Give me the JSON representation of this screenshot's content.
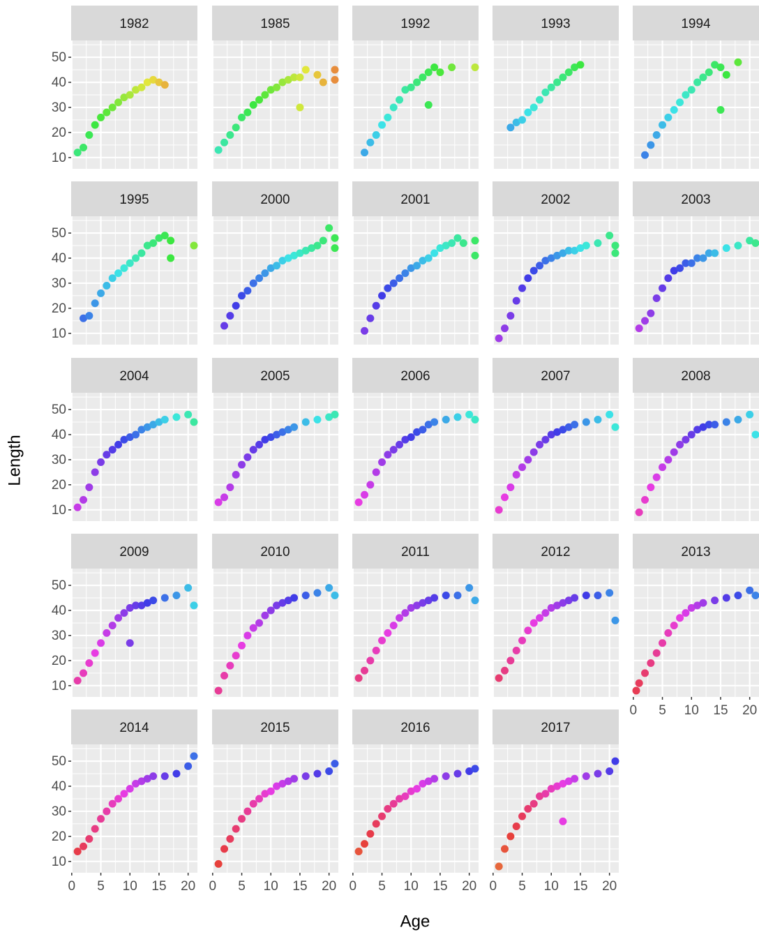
{
  "chart_data": {
    "type": "scatter",
    "x_label": "Age",
    "y_label": "Length",
    "xlim": [
      -0.1,
      21.6
    ],
    "ylim": [
      5.5,
      56.7
    ],
    "xticks": [
      0,
      5,
      10,
      15,
      20
    ],
    "yticks": [
      10,
      20,
      30,
      40,
      50
    ],
    "xminor": [
      2.5,
      7.5,
      12.5,
      17.5
    ],
    "yminor": [
      15,
      25,
      35,
      45,
      55
    ],
    "grid": true,
    "color_scale": {
      "domain": [
        1962,
        2016
      ],
      "hue": [
        15,
        375
      ],
      "saturation": 78,
      "lightness": 57
    },
    "panels": [
      {
        "title": "1982",
        "x": [
          1,
          2,
          3,
          4,
          5,
          6,
          7,
          8,
          9,
          10,
          11,
          12,
          13,
          14,
          15,
          16
        ],
        "y": [
          12,
          14,
          19,
          23,
          26,
          28,
          30,
          32,
          34,
          35,
          37,
          38,
          40,
          41,
          40,
          39
        ]
      },
      {
        "title": "1985",
        "x": [
          1,
          2,
          3,
          4,
          5,
          6,
          7,
          8,
          9,
          10,
          11,
          12,
          13,
          14,
          15,
          16,
          18,
          19,
          21,
          21,
          15
        ],
        "y": [
          13,
          16,
          19,
          22,
          26,
          28,
          31,
          33,
          35,
          37,
          38,
          40,
          41,
          42,
          42,
          45,
          43,
          40,
          45,
          41,
          30
        ]
      },
      {
        "title": "1992",
        "x": [
          2,
          3,
          4,
          5,
          6,
          7,
          8,
          9,
          10,
          11,
          12,
          13,
          14,
          15,
          17,
          21,
          13
        ],
        "y": [
          12,
          16,
          19,
          23,
          26,
          30,
          33,
          37,
          38,
          40,
          42,
          44,
          46,
          44,
          46,
          46,
          31
        ]
      },
      {
        "title": "1993",
        "x": [
          3,
          4,
          5,
          6,
          7,
          8,
          9,
          10,
          11,
          12,
          13,
          14,
          15
        ],
        "y": [
          22,
          24,
          25,
          28,
          30,
          33,
          36,
          38,
          40,
          42,
          44,
          46,
          47
        ]
      },
      {
        "title": "1994",
        "x": [
          2,
          3,
          4,
          5,
          6,
          7,
          8,
          9,
          10,
          11,
          12,
          13,
          14,
          15,
          16,
          18,
          15
        ],
        "y": [
          11,
          15,
          19,
          23,
          26,
          29,
          32,
          35,
          37,
          40,
          42,
          44,
          47,
          46,
          43,
          48,
          29
        ]
      },
      {
        "title": "1995",
        "x": [
          2,
          3,
          4,
          5,
          6,
          7,
          8,
          9,
          10,
          11,
          12,
          13,
          14,
          15,
          16,
          17,
          21,
          17
        ],
        "y": [
          16,
          17,
          22,
          26,
          29,
          32,
          34,
          36,
          38,
          40,
          42,
          45,
          46,
          48,
          49,
          47,
          45,
          40
        ]
      },
      {
        "title": "2000",
        "x": [
          2,
          3,
          4,
          5,
          6,
          7,
          8,
          9,
          10,
          11,
          12,
          13,
          14,
          15,
          16,
          17,
          18,
          19,
          20,
          21,
          21
        ],
        "y": [
          13,
          17,
          21,
          25,
          27,
          30,
          32,
          34,
          36,
          37,
          39,
          40,
          41,
          42,
          43,
          44,
          45,
          47,
          52,
          48,
          44
        ]
      },
      {
        "title": "2001",
        "x": [
          2,
          3,
          4,
          5,
          6,
          7,
          8,
          9,
          10,
          11,
          12,
          13,
          14,
          15,
          16,
          17,
          18,
          19,
          21,
          21
        ],
        "y": [
          11,
          16,
          21,
          25,
          28,
          30,
          32,
          34,
          36,
          37,
          39,
          40,
          42,
          44,
          45,
          46,
          48,
          46,
          47,
          41
        ]
      },
      {
        "title": "2002",
        "x": [
          1,
          2,
          3,
          4,
          5,
          6,
          7,
          8,
          9,
          10,
          11,
          12,
          13,
          14,
          15,
          16,
          18,
          20,
          21,
          21
        ],
        "y": [
          8,
          12,
          17,
          23,
          28,
          32,
          35,
          37,
          39,
          40,
          41,
          42,
          43,
          43,
          44,
          45,
          46,
          49,
          45,
          42
        ]
      },
      {
        "title": "2003",
        "x": [
          1,
          2,
          3,
          4,
          5,
          6,
          7,
          8,
          9,
          10,
          11,
          12,
          13,
          14,
          16,
          18,
          20,
          21
        ],
        "y": [
          12,
          15,
          18,
          24,
          28,
          32,
          35,
          36,
          38,
          38,
          40,
          40,
          42,
          42,
          44,
          45,
          47,
          46
        ]
      },
      {
        "title": "2004",
        "x": [
          1,
          2,
          3,
          4,
          5,
          6,
          7,
          8,
          9,
          10,
          11,
          12,
          13,
          14,
          15,
          16,
          18,
          20,
          21
        ],
        "y": [
          11,
          14,
          19,
          25,
          29,
          32,
          34,
          36,
          38,
          39,
          40,
          42,
          43,
          44,
          45,
          46,
          47,
          48,
          45
        ]
      },
      {
        "title": "2005",
        "x": [
          1,
          2,
          3,
          4,
          5,
          6,
          7,
          8,
          9,
          10,
          11,
          12,
          13,
          14,
          16,
          18,
          20,
          21
        ],
        "y": [
          13,
          15,
          19,
          24,
          28,
          31,
          34,
          36,
          38,
          39,
          40,
          41,
          42,
          43,
          45,
          46,
          47,
          48
        ]
      },
      {
        "title": "2006",
        "x": [
          1,
          2,
          3,
          4,
          5,
          6,
          7,
          8,
          9,
          10,
          11,
          12,
          13,
          14,
          16,
          18,
          20,
          21
        ],
        "y": [
          13,
          16,
          20,
          25,
          29,
          32,
          34,
          36,
          38,
          39,
          41,
          42,
          44,
          45,
          46,
          47,
          48,
          46
        ]
      },
      {
        "title": "2007",
        "x": [
          1,
          2,
          3,
          4,
          5,
          6,
          7,
          8,
          9,
          10,
          11,
          12,
          13,
          14,
          16,
          18,
          20,
          21
        ],
        "y": [
          10,
          15,
          19,
          24,
          27,
          30,
          33,
          36,
          38,
          40,
          41,
          42,
          43,
          44,
          45,
          46,
          48,
          43
        ]
      },
      {
        "title": "2008",
        "x": [
          1,
          2,
          3,
          4,
          5,
          6,
          7,
          8,
          9,
          10,
          11,
          12,
          13,
          14,
          16,
          18,
          20,
          21
        ],
        "y": [
          9,
          14,
          19,
          23,
          27,
          30,
          33,
          36,
          38,
          40,
          42,
          43,
          44,
          44,
          45,
          46,
          48,
          40
        ]
      },
      {
        "title": "2009",
        "x": [
          1,
          2,
          3,
          4,
          5,
          6,
          7,
          8,
          9,
          10,
          11,
          12,
          13,
          14,
          16,
          18,
          20,
          21,
          10
        ],
        "y": [
          12,
          15,
          19,
          23,
          27,
          31,
          34,
          37,
          39,
          41,
          42,
          42,
          43,
          44,
          45,
          46,
          49,
          42,
          27
        ]
      },
      {
        "title": "2010",
        "x": [
          1,
          2,
          3,
          4,
          5,
          6,
          7,
          8,
          9,
          10,
          11,
          12,
          13,
          14,
          16,
          18,
          20,
          21
        ],
        "y": [
          8,
          14,
          18,
          22,
          26,
          30,
          33,
          35,
          38,
          40,
          42,
          43,
          44,
          45,
          46,
          47,
          49,
          46
        ]
      },
      {
        "title": "2011",
        "x": [
          1,
          2,
          3,
          4,
          5,
          6,
          7,
          8,
          9,
          10,
          11,
          12,
          13,
          14,
          16,
          18,
          20,
          21
        ],
        "y": [
          13,
          16,
          20,
          24,
          28,
          31,
          34,
          37,
          39,
          41,
          42,
          43,
          44,
          45,
          46,
          46,
          49,
          44
        ]
      },
      {
        "title": "2012",
        "x": [
          1,
          2,
          3,
          4,
          5,
          6,
          7,
          8,
          9,
          10,
          11,
          12,
          13,
          14,
          16,
          18,
          20,
          21
        ],
        "y": [
          13,
          16,
          20,
          24,
          28,
          32,
          35,
          37,
          39,
          41,
          42,
          43,
          44,
          45,
          46,
          46,
          47,
          36
        ]
      },
      {
        "title": "2013",
        "x": [
          0.5,
          1,
          2,
          3,
          4,
          5,
          6,
          7,
          8,
          9,
          10,
          11,
          12,
          14,
          16,
          18,
          20,
          21
        ],
        "y": [
          8,
          11,
          15,
          19,
          23,
          27,
          31,
          34,
          37,
          39,
          41,
          42,
          43,
          44,
          45,
          46,
          48,
          46
        ]
      },
      {
        "title": "2014",
        "x": [
          1,
          2,
          3,
          4,
          5,
          6,
          7,
          8,
          9,
          10,
          11,
          12,
          13,
          14,
          16,
          18,
          20,
          21
        ],
        "y": [
          14,
          16,
          19,
          23,
          27,
          30,
          33,
          35,
          37,
          39,
          41,
          42,
          43,
          44,
          44,
          45,
          48,
          52
        ]
      },
      {
        "title": "2015",
        "x": [
          1,
          2,
          3,
          4,
          5,
          6,
          7,
          8,
          9,
          10,
          11,
          12,
          13,
          14,
          16,
          18,
          20,
          21
        ],
        "y": [
          9,
          15,
          19,
          23,
          27,
          30,
          33,
          35,
          37,
          38,
          40,
          41,
          42,
          43,
          44,
          45,
          46,
          49
        ]
      },
      {
        "title": "2016",
        "x": [
          1,
          2,
          3,
          4,
          5,
          6,
          7,
          8,
          9,
          10,
          11,
          12,
          13,
          14,
          16,
          18,
          20,
          21
        ],
        "y": [
          14,
          17,
          21,
          25,
          28,
          31,
          33,
          35,
          36,
          38,
          39,
          41,
          42,
          43,
          44,
          45,
          46,
          47
        ]
      },
      {
        "title": "2017",
        "x": [
          1,
          2,
          3,
          4,
          5,
          6,
          7,
          8,
          9,
          10,
          11,
          12,
          13,
          14,
          16,
          18,
          20,
          21,
          12
        ],
        "y": [
          8,
          15,
          20,
          24,
          28,
          31,
          33,
          36,
          37,
          39,
          40,
          41,
          42,
          43,
          44,
          45,
          46,
          50,
          26
        ]
      }
    ]
  }
}
